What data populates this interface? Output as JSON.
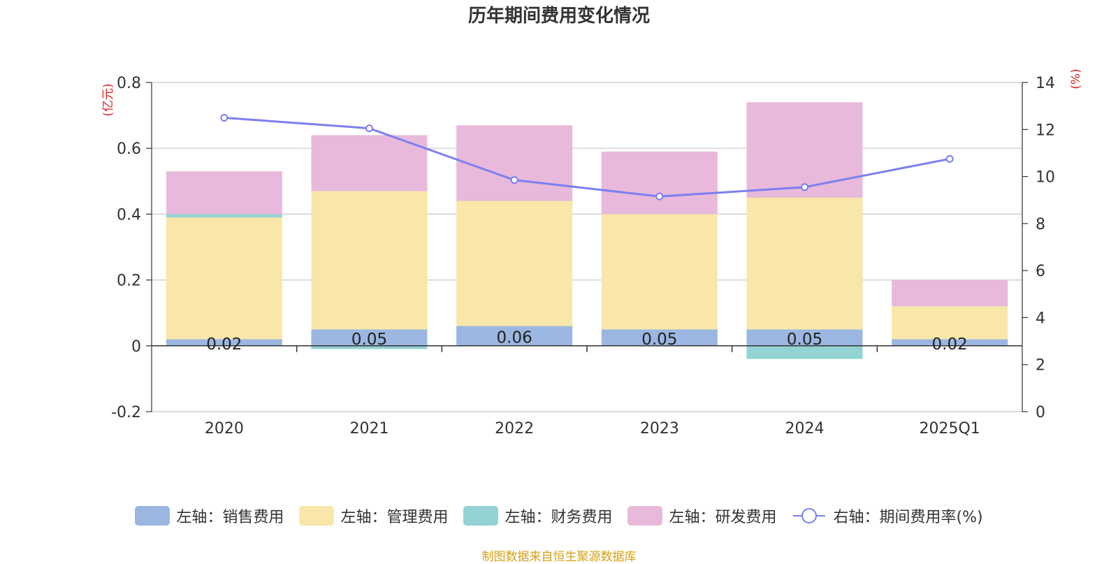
{
  "title": "历年期间费用变化情况",
  "source": "制图数据来自恒生聚源数据库",
  "colors": {
    "sales": "#9bb6e0",
    "admin": "#f8e7a8",
    "finance": "#93d3d3",
    "rnd": "#e8b9da",
    "rate": "#7b7ff0",
    "axis_unit": "#e02020"
  },
  "chart_data": {
    "type": "bar",
    "stacked": true,
    "categories": [
      "2020",
      "2021",
      "2022",
      "2023",
      "2024",
      "2025Q1"
    ],
    "left_axis": {
      "unit_label": "(亿元)",
      "ylim": [
        -0.2,
        0.8
      ],
      "ticks": [
        -0.2,
        0,
        0.2,
        0.4,
        0.6,
        0.8
      ],
      "tick_labels": [
        "-0.2",
        "0",
        "0.2",
        "0.4",
        "0.6",
        "0.8"
      ]
    },
    "right_axis": {
      "unit_label": "(%)",
      "ylim": [
        0,
        14
      ],
      "ticks": [
        0,
        2,
        4,
        6,
        8,
        10,
        12,
        14
      ],
      "tick_labels": [
        "0",
        "2",
        "4",
        "6",
        "8",
        "10",
        "12",
        "14"
      ]
    },
    "series": [
      {
        "name": "左轴：销售费用",
        "key": "sales",
        "values": [
          0.02,
          0.05,
          0.06,
          0.05,
          0.05,
          0.02
        ],
        "data_labels": [
          "0.02",
          "0.05",
          "0.06",
          "0.05",
          "0.05",
          "0.02"
        ]
      },
      {
        "name": "左轴：管理费用",
        "key": "admin",
        "values": [
          0.37,
          0.42,
          0.38,
          0.35,
          0.4,
          0.1
        ]
      },
      {
        "name": "左轴：财务费用",
        "key": "finance",
        "values": [
          0.01,
          -0.01,
          0.0,
          0.0,
          -0.04,
          0.0
        ]
      },
      {
        "name": "左轴：研发费用",
        "key": "rnd",
        "values": [
          0.13,
          0.17,
          0.23,
          0.19,
          0.29,
          0.08
        ]
      },
      {
        "name": "右轴：期间费用率(%)",
        "key": "rate",
        "type": "line",
        "axis": "right",
        "values": [
          12.5,
          12.05,
          9.85,
          9.15,
          9.55,
          10.75
        ]
      }
    ]
  }
}
